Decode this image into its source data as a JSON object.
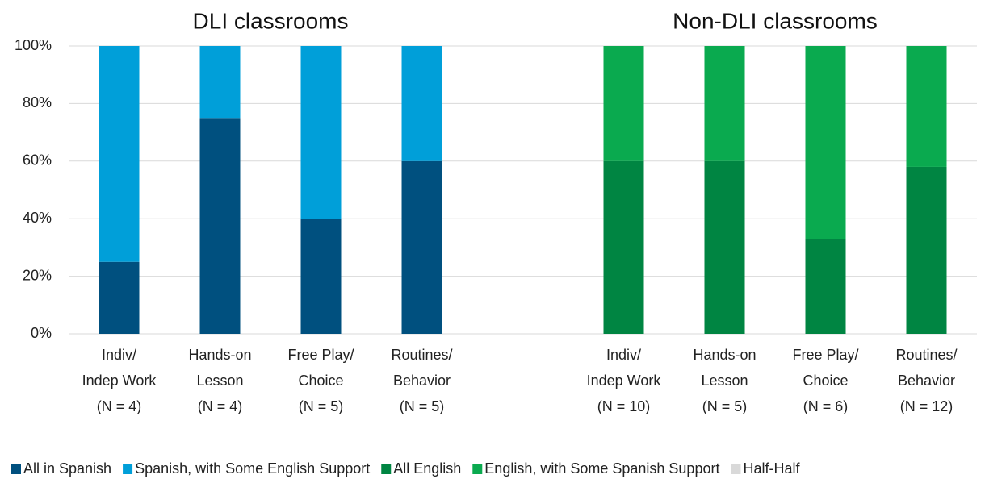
{
  "chart_data": {
    "type": "stacked_bar",
    "titles": [
      "DLI classrooms",
      "Non-DLI classrooms"
    ],
    "categories": [
      "Indiv/\nIndep Work\n(N = 4)",
      "Hands-on\nLesson\n(N = 4)",
      "Free Play/\nChoice\n(N = 5)",
      "Routines/\nBehavior\n(N = 5)",
      null,
      "Indiv/\nIndep Work\n(N = 10)",
      "Hands-on\nLesson\n(N = 5)",
      "Free Play/\nChoice\n(N = 6)",
      "Routines/\nBehavior\n(N = 12)"
    ],
    "series": [
      {
        "name": "All in Spanish",
        "color": "#00507f",
        "values": [
          25,
          75,
          40,
          60,
          null,
          null,
          null,
          null,
          null
        ]
      },
      {
        "name": "Spanish, with Some English Support",
        "color": "#009fd9",
        "values": [
          75,
          25,
          60,
          40,
          null,
          null,
          null,
          null,
          null
        ]
      },
      {
        "name": "All English",
        "color": "#008542",
        "values": [
          null,
          null,
          null,
          null,
          null,
          60,
          60,
          33,
          58
        ]
      },
      {
        "name": "English, with Some Spanish Support",
        "color": "#0aaa4f",
        "values": [
          null,
          null,
          null,
          null,
          null,
          40,
          40,
          67,
          42
        ]
      },
      {
        "name": "Half-Half",
        "color": "#d9d9d9",
        "values": [
          null,
          null,
          null,
          null,
          null,
          null,
          null,
          null,
          null
        ]
      }
    ],
    "ylim": [
      0,
      100
    ],
    "yticks": [
      {
        "value": 0,
        "label": "0%"
      },
      {
        "value": 20,
        "label": "20%"
      },
      {
        "value": 40,
        "label": "40%"
      },
      {
        "value": 60,
        "label": "60%"
      },
      {
        "value": 80,
        "label": "80%"
      },
      {
        "value": 100,
        "label": "100%"
      }
    ],
    "grid": true,
    "legend": "bottom"
  }
}
